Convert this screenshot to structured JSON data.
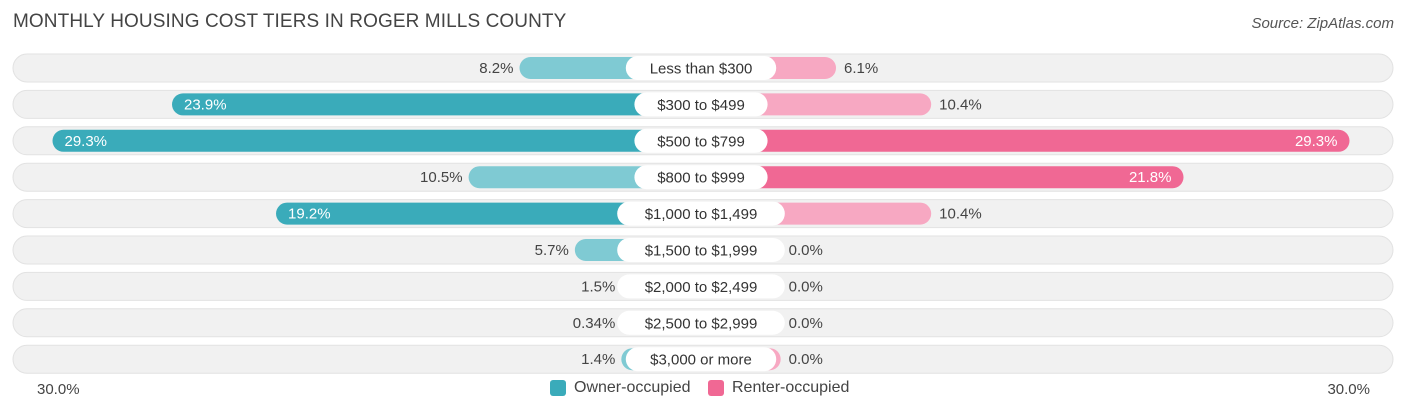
{
  "title": "MONTHLY HOUSING COST TIERS IN ROGER MILLS COUNTY",
  "source": "Source: ZipAtlas.com",
  "colors": {
    "owner": "#3aabba",
    "owner_light": "#7fcad3",
    "renter": "#f06894",
    "renter_light": "#f7a8c2",
    "track": "#f1f1f1"
  },
  "axis": {
    "left_label": "30.0%",
    "right_label": "30.0%"
  },
  "legend": {
    "owner_label": "Owner-occupied",
    "renter_label": "Renter-occupied"
  },
  "chart_data": {
    "type": "bar",
    "orientation": "horizontal-diverging",
    "title": "MONTHLY HOUSING COST TIERS IN ROGER MILLS COUNTY",
    "xlim": [
      -30,
      30
    ],
    "categories": [
      "Less than $300",
      "$300 to $499",
      "$500 to $799",
      "$800 to $999",
      "$1,000 to $1,499",
      "$1,500 to $1,999",
      "$2,000 to $2,499",
      "$2,500 to $2,999",
      "$3,000 or more"
    ],
    "series": [
      {
        "name": "Owner-occupied",
        "values": [
          8.2,
          23.9,
          29.3,
          10.5,
          19.2,
          5.7,
          1.5,
          0.34,
          1.4
        ],
        "labels": [
          "8.2%",
          "23.9%",
          "29.3%",
          "10.5%",
          "19.2%",
          "5.7%",
          "1.5%",
          "0.34%",
          "1.4%"
        ]
      },
      {
        "name": "Renter-occupied",
        "values": [
          6.1,
          10.4,
          29.3,
          21.8,
          10.4,
          0.0,
          0.0,
          0.0,
          0.0
        ],
        "labels": [
          "6.1%",
          "10.4%",
          "29.3%",
          "21.8%",
          "10.4%",
          "0.0%",
          "0.0%",
          "0.0%",
          "0.0%"
        ]
      }
    ]
  }
}
